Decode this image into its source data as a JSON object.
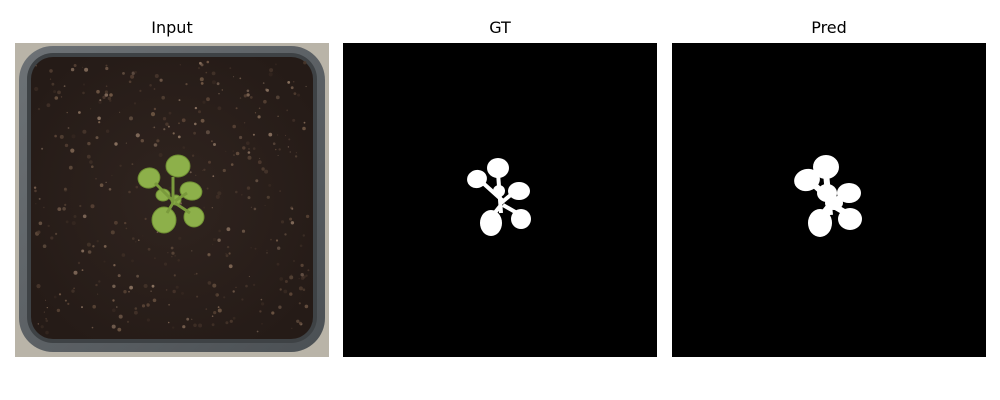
{
  "panels": [
    {
      "title": "Input"
    },
    {
      "title": "GT"
    },
    {
      "title": "Pred"
    }
  ],
  "colors": {
    "background": "#ffffff",
    "mask_background": "#000000",
    "mask_foreground": "#ffffff",
    "pot_rim": "#5f6468",
    "soil": "#2c211c",
    "leaf": "#8fb24a"
  }
}
